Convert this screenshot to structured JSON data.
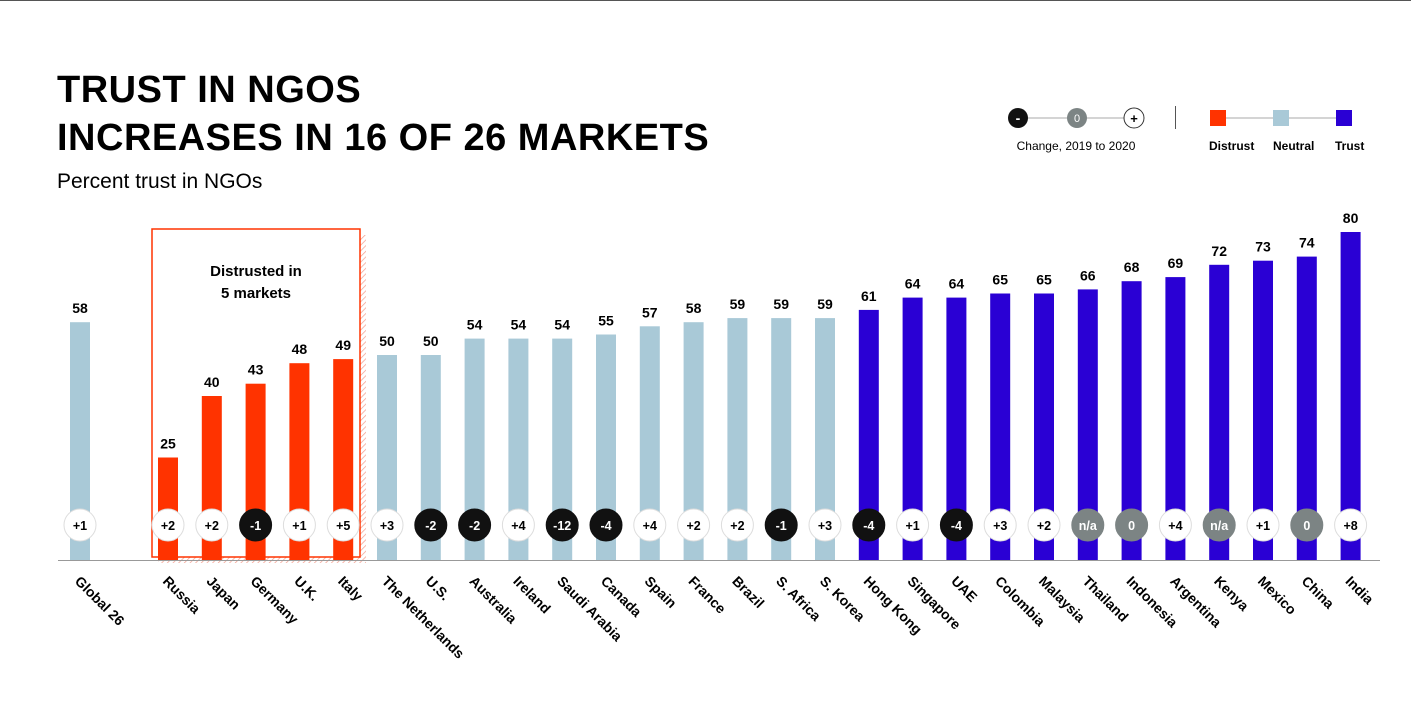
{
  "title": {
    "line1": "TRUST IN NGOS",
    "line2": "INCREASES IN 16 OF 26 MARKETS"
  },
  "subtitle": "Percent trust in NGOs",
  "legend": {
    "change": {
      "negative_symbol": "-",
      "zero_symbol": "0",
      "positive_symbol": "+",
      "label": "Change, 2019 to 2020"
    },
    "categories": [
      {
        "label": "Distrust",
        "color": "#ff3300"
      },
      {
        "label": "Neutral",
        "color": "#a9c9d7"
      },
      {
        "label": "Trust",
        "color": "#2a00d4"
      }
    ]
  },
  "highlight_box": {
    "label_line1": "Distrusted in",
    "label_line2": "5 markets"
  },
  "chart_data": {
    "type": "bar",
    "title": "TRUST IN NGOS INCREASES IN 16 OF 26 MARKETS",
    "subtitle": "Percent trust in NGOs",
    "ylim": [
      0,
      100
    ],
    "grid": false,
    "legend_position": "top-right",
    "categories": [
      "Global 26",
      "Russia",
      "Japan",
      "Germany",
      "U.K.",
      "Italy",
      "The Netherlands",
      "U.S.",
      "Australia",
      "Ireland",
      "Saudi Arabia",
      "Canada",
      "Spain",
      "France",
      "Brazil",
      "S. Africa",
      "S. Korea",
      "Hong Kong",
      "Singapore",
      "UAE",
      "Colombia",
      "Malaysia",
      "Thailand",
      "Indonesia",
      "Argentina",
      "Kenya",
      "Mexico",
      "China",
      "India"
    ],
    "values": [
      58,
      25,
      40,
      43,
      48,
      49,
      50,
      50,
      54,
      54,
      54,
      55,
      57,
      58,
      59,
      59,
      59,
      61,
      64,
      64,
      65,
      65,
      66,
      68,
      69,
      72,
      73,
      74,
      80
    ],
    "levels": [
      "neutral",
      "distrust",
      "distrust",
      "distrust",
      "distrust",
      "distrust",
      "neutral",
      "neutral",
      "neutral",
      "neutral",
      "neutral",
      "neutral",
      "neutral",
      "neutral",
      "neutral",
      "neutral",
      "neutral",
      "trust",
      "trust",
      "trust",
      "trust",
      "trust",
      "trust",
      "trust",
      "trust",
      "trust",
      "trust",
      "trust",
      "trust"
    ],
    "changes": [
      "+1",
      "+2",
      "+2",
      "-1",
      "+1",
      "+5",
      "+3",
      "-2",
      "-2",
      "+4",
      "-12",
      "-4",
      "+4",
      "+2",
      "+2",
      "-1",
      "+3",
      "-4",
      "+1",
      "-4",
      "+3",
      "+2",
      "n/a",
      "0",
      "+4",
      "n/a",
      "+1",
      "0",
      "+8"
    ]
  }
}
